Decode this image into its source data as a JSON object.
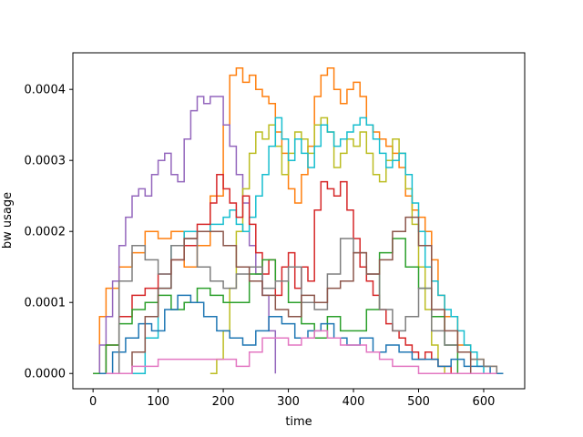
{
  "chart_data": {
    "type": "line",
    "title": "",
    "xlabel": "time",
    "ylabel": "bw usage",
    "xlim": [
      -31,
      663
    ],
    "ylim": [
      -2.15e-05,
      0.0004515
    ],
    "xticks": [
      0,
      100,
      200,
      300,
      400,
      500,
      600
    ],
    "xtick_labels": [
      "0",
      "100",
      "200",
      "300",
      "400",
      "500",
      "600"
    ],
    "yticks": [
      0.0,
      0.0001,
      0.0002,
      0.0003,
      0.0004
    ],
    "ytick_labels": [
      "0.0000",
      "0.0001",
      "0.0002",
      "0.0003",
      "0.0004"
    ],
    "grid": false,
    "legend": "none",
    "series": [
      {
        "color": "#ff7f0e",
        "x": [
          0,
          10,
          20,
          40,
          60,
          80,
          100,
          120,
          140,
          160,
          180,
          200,
          210,
          220,
          230,
          240,
          250,
          260,
          270,
          280,
          290,
          300,
          310,
          320,
          330,
          340,
          350,
          360,
          370,
          380,
          390,
          400,
          410,
          420,
          430,
          440,
          450,
          460,
          470,
          480,
          490,
          500,
          510,
          520,
          530,
          540,
          560,
          580,
          600,
          620,
          630
        ],
        "y": [
          0,
          8e-05,
          0.00012,
          0.00015,
          0.00017,
          0.0002,
          0.00019,
          0.0002,
          0.00015,
          0.00018,
          0.00025,
          0.00035,
          0.00042,
          0.00043,
          0.00041,
          0.00042,
          0.0004,
          0.00039,
          0.00038,
          0.00034,
          0.00031,
          0.00026,
          0.00024,
          0.00028,
          0.00032,
          0.00039,
          0.00042,
          0.00043,
          0.0004,
          0.00038,
          0.0004,
          0.00041,
          0.00039,
          0.00035,
          0.00034,
          0.00033,
          0.00032,
          0.00031,
          0.00029,
          0.00025,
          0.00023,
          0.00022,
          0.0002,
          0.00016,
          0.00011,
          8e-05,
          4e-05,
          2e-05,
          1e-05,
          0,
          0
        ]
      },
      {
        "color": "#9467bd",
        "x": [
          0,
          10,
          20,
          30,
          40,
          50,
          60,
          70,
          80,
          90,
          100,
          110,
          120,
          130,
          140,
          150,
          160,
          170,
          180,
          190,
          200,
          210,
          220,
          230,
          240,
          250,
          260,
          270,
          280
        ],
        "y": [
          0,
          4e-05,
          8e-05,
          0.00013,
          0.00018,
          0.00022,
          0.00025,
          0.00026,
          0.00025,
          0.00028,
          0.0003,
          0.00031,
          0.00028,
          0.00027,
          0.00033,
          0.00037,
          0.00039,
          0.00038,
          0.00039,
          0.00039,
          0.00035,
          0.00032,
          0.00028,
          0.00024,
          0.00018,
          0.00014,
          0.00011,
          6e-05,
          0
        ]
      },
      {
        "color": "#bcbd22",
        "x": [
          180,
          190,
          200,
          210,
          220,
          230,
          240,
          250,
          260,
          270,
          280,
          290,
          300,
          310,
          320,
          330,
          340,
          350,
          360,
          370,
          380,
          390,
          400,
          410,
          420,
          430,
          440,
          450,
          460,
          470,
          480,
          490,
          500,
          510,
          520,
          530,
          540
        ],
        "y": [
          0,
          2e-05,
          6e-05,
          0.00012,
          0.0002,
          0.00026,
          0.00031,
          0.00034,
          0.00033,
          0.00035,
          0.00032,
          0.00028,
          0.00031,
          0.00034,
          0.00033,
          0.00031,
          0.00035,
          0.00036,
          0.00034,
          0.00029,
          0.00031,
          0.00033,
          0.00032,
          0.00034,
          0.00031,
          0.00028,
          0.00027,
          0.0003,
          0.00033,
          0.00031,
          0.00026,
          0.00021,
          0.00015,
          9e-05,
          4e-05,
          1e-05,
          0
        ]
      },
      {
        "color": "#17becf",
        "x": [
          60,
          80,
          100,
          120,
          140,
          160,
          180,
          200,
          210,
          220,
          230,
          240,
          250,
          260,
          270,
          280,
          290,
          300,
          310,
          320,
          330,
          340,
          350,
          360,
          370,
          380,
          390,
          400,
          410,
          420,
          430,
          440,
          450,
          460,
          470,
          480,
          490,
          500,
          510,
          520,
          530,
          540,
          550,
          560,
          570,
          580,
          590,
          600
        ],
        "y": [
          0,
          5e-05,
          0.00012,
          0.00018,
          0.0002,
          0.0002,
          0.00021,
          0.00022,
          0.00023,
          0.00021,
          0.0002,
          0.00022,
          0.00025,
          0.00028,
          0.00032,
          0.00036,
          0.00033,
          0.0003,
          0.00033,
          0.00031,
          0.00029,
          0.00032,
          0.00035,
          0.00034,
          0.00032,
          0.00033,
          0.00034,
          0.00035,
          0.00036,
          0.00035,
          0.00033,
          0.00031,
          0.00029,
          0.0003,
          0.00031,
          0.00028,
          0.00024,
          0.0002,
          0.00015,
          0.00013,
          0.00011,
          9e-05,
          8e-05,
          6e-05,
          4e-05,
          3e-05,
          1e-05,
          0
        ]
      },
      {
        "color": "#d62728",
        "x": [
          0,
          20,
          40,
          60,
          80,
          100,
          120,
          140,
          160,
          180,
          190,
          200,
          210,
          220,
          230,
          240,
          250,
          260,
          270,
          280,
          290,
          300,
          310,
          320,
          330,
          340,
          350,
          360,
          370,
          380,
          390,
          400,
          410,
          420,
          430,
          440,
          450,
          460,
          470,
          480,
          490,
          500,
          510,
          520,
          530,
          540,
          550,
          560
        ],
        "y": [
          0,
          4e-05,
          8e-05,
          0.00011,
          0.00012,
          0.00014,
          0.00016,
          0.00018,
          0.00021,
          0.00024,
          0.00028,
          0.00026,
          0.00024,
          0.00022,
          0.00025,
          0.00021,
          0.00017,
          0.00014,
          0.00016,
          0.00011,
          0.00015,
          0.00017,
          0.00012,
          0.00015,
          0.00013,
          0.00023,
          0.00027,
          0.00026,
          0.00025,
          0.00027,
          0.00023,
          0.00019,
          0.00015,
          0.00013,
          0.00011,
          9e-05,
          7e-05,
          6e-05,
          5e-05,
          4e-05,
          3e-05,
          2e-05,
          3e-05,
          2e-05,
          1e-05,
          1e-05,
          0,
          0
        ]
      },
      {
        "color": "#2ca02c",
        "x": [
          0,
          20,
          40,
          60,
          80,
          100,
          120,
          140,
          160,
          180,
          200,
          220,
          240,
          260,
          280,
          300,
          320,
          340,
          360,
          380,
          400,
          420,
          440,
          460,
          480,
          500,
          520,
          540,
          560
        ],
        "y": [
          0,
          4e-05,
          7e-05,
          9e-05,
          0.0001,
          0.00011,
          9e-05,
          0.0001,
          0.00012,
          0.00011,
          0.0001,
          0.0001,
          0.00014,
          0.00016,
          0.00013,
          0.0001,
          7e-05,
          5e-05,
          8e-05,
          6e-05,
          6e-05,
          9e-05,
          0.00017,
          0.00019,
          0.00015,
          0.00012,
          8e-05,
          4e-05,
          0
        ]
      },
      {
        "color": "#1f77b4",
        "x": [
          10,
          30,
          50,
          70,
          90,
          110,
          130,
          150,
          170,
          190,
          210,
          230,
          250,
          270,
          290,
          310,
          330,
          350,
          370,
          390,
          410,
          430,
          450,
          470,
          490,
          510,
          530,
          550,
          570,
          590,
          610,
          630
        ],
        "y": [
          0,
          3e-05,
          5e-05,
          7e-05,
          6e-05,
          9e-05,
          0.00011,
          0.0001,
          8e-05,
          6e-05,
          5e-05,
          4e-05,
          6e-05,
          8e-05,
          7e-05,
          5e-05,
          6e-05,
          7e-05,
          5e-05,
          4e-05,
          5e-05,
          3e-05,
          4e-05,
          3e-05,
          2e-05,
          2e-05,
          1e-05,
          2e-05,
          1e-05,
          1e-05,
          0,
          0
        ]
      },
      {
        "color": "#7f7f7f",
        "x": [
          20,
          40,
          60,
          80,
          100,
          120,
          140,
          160,
          180,
          200,
          220,
          240,
          260,
          280,
          300,
          320,
          340,
          360,
          380,
          400,
          420,
          440,
          460,
          480,
          500,
          520,
          540,
          560,
          580,
          600,
          620
        ],
        "y": [
          0,
          0.00013,
          0.00018,
          0.00016,
          0.00014,
          0.00018,
          0.00019,
          0.00015,
          0.00013,
          0.00012,
          0.00014,
          0.00015,
          0.00012,
          0.00013,
          0.00015,
          0.0001,
          9e-05,
          0.00014,
          0.00019,
          0.00017,
          0.00014,
          9e-05,
          6e-05,
          8e-05,
          0.00012,
          6e-05,
          4e-05,
          3e-05,
          2e-05,
          1e-05,
          0
        ]
      },
      {
        "color": "#8c564b",
        "x": [
          40,
          60,
          80,
          100,
          120,
          140,
          160,
          180,
          200,
          220,
          240,
          260,
          280,
          300,
          320,
          340,
          360,
          380,
          400,
          420,
          440,
          460,
          480,
          500,
          520,
          540,
          560,
          580
        ],
        "y": [
          0,
          3e-05,
          8e-05,
          0.00012,
          0.00016,
          0.00019,
          0.0002,
          0.0002,
          0.00018,
          0.00015,
          0.00013,
          0.00011,
          9e-05,
          8e-05,
          0.00011,
          0.0001,
          0.00012,
          0.00013,
          0.00017,
          0.00014,
          0.00016,
          0.0002,
          0.00022,
          0.00018,
          9e-05,
          6e-05,
          3e-05,
          0
        ]
      },
      {
        "color": "#e377c2",
        "x": [
          20,
          60,
          100,
          140,
          180,
          220,
          240,
          260,
          280,
          300,
          320,
          340,
          360,
          380,
          400,
          420,
          440,
          460,
          480,
          500,
          520,
          540,
          560,
          580,
          600,
          620
        ],
        "y": [
          0,
          1e-05,
          2e-05,
          2e-05,
          2e-05,
          1e-05,
          3e-05,
          5e-05,
          5e-05,
          4e-05,
          5e-05,
          6e-05,
          5e-05,
          4e-05,
          4e-05,
          3e-05,
          2e-05,
          1e-05,
          1e-05,
          0,
          0,
          0,
          0,
          0,
          0,
          0
        ]
      }
    ]
  }
}
